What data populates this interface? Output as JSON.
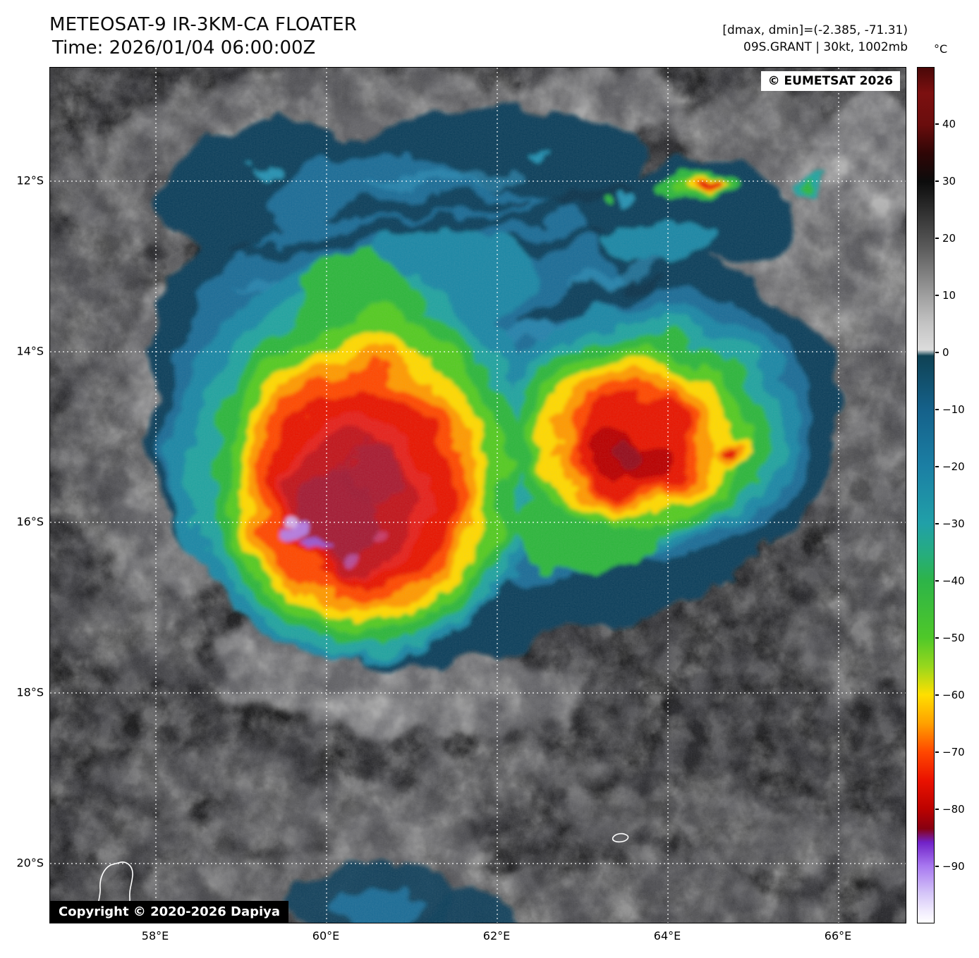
{
  "header": {
    "title": "METEOSAT-9 IR-3KM-CA FLOATER",
    "time_line": "Time: 2026/01/04 06:00:00Z",
    "dmax_dmin": "[dmax, dmin]=(-2.385, -71.31)",
    "storm_line": "09S.GRANT | 30kt, 1002mb"
  },
  "colorbar": {
    "unit": "°C",
    "ticks": [
      "40",
      "30",
      "20",
      "10",
      "0",
      "−10",
      "−20",
      "−30",
      "−40",
      "−50",
      "−60",
      "−70",
      "−80",
      "−90"
    ]
  },
  "axes": {
    "lat_ticks": [
      "12°S",
      "14°S",
      "16°S",
      "18°S",
      "20°S"
    ],
    "lon_ticks": [
      "58°E",
      "60°E",
      "62°E",
      "64°E",
      "66°E"
    ]
  },
  "overlays": {
    "eumetsat": "© EUMETSAT 2026",
    "copyright": "Copyright © 2020-2026 Dapiya"
  }
}
